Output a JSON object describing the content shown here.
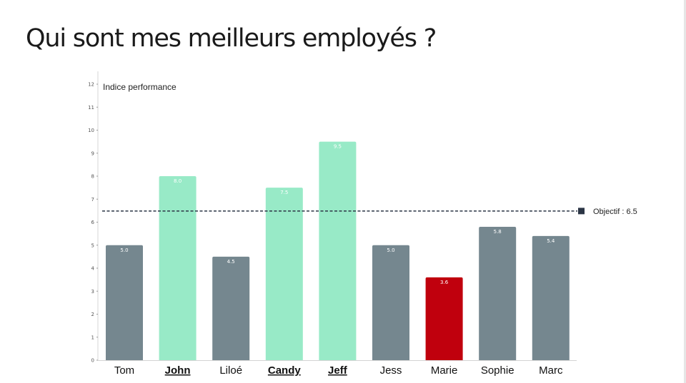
{
  "page": {
    "title": "Qui sont mes meilleurs employés ?"
  },
  "chart_data": {
    "type": "bar",
    "title": "",
    "ylabel": "Indice performance",
    "xlabel": "",
    "ylim": [
      0,
      12
    ],
    "yticks": [
      0,
      1,
      2,
      3,
      4,
      5,
      6,
      7,
      8,
      9,
      10,
      11,
      12
    ],
    "categories": [
      "Tom",
      "John",
      "Liloé",
      "Candy",
      "Jeff",
      "Jess",
      "Marie",
      "Sophie",
      "Marc"
    ],
    "values": [
      5.0,
      8.0,
      4.5,
      7.5,
      9.5,
      5.0,
      3.6,
      5.8,
      5.4
    ],
    "data_labels": [
      "5.0",
      "8.0",
      "4.5",
      "7.5",
      "9.5",
      "5.0",
      "3.6",
      "5.8",
      "5.4"
    ],
    "highlighted_categories": [
      "John",
      "Candy",
      "Jeff"
    ],
    "bar_colors": [
      "#75878f",
      "#98eac7",
      "#75878f",
      "#98eac7",
      "#98eac7",
      "#75878f",
      "#c0000d",
      "#75878f",
      "#75878f"
    ],
    "grid": false,
    "target": {
      "value": 6.5,
      "label": "Objectif : 6.5",
      "color": "#2b3545",
      "style": "dashed"
    }
  }
}
